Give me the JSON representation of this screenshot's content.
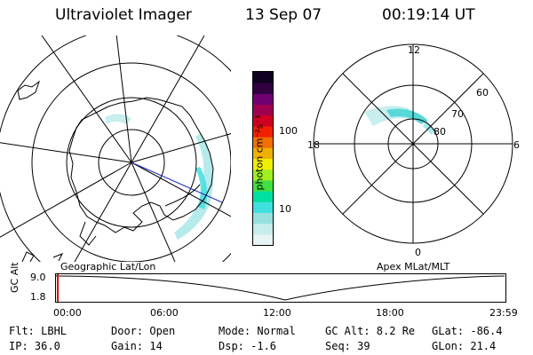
{
  "header": {
    "instrument": "Ultraviolet Imager",
    "date": "13 Sep 07",
    "time": "00:19:14 UT"
  },
  "geo_panel": {
    "label": "Geographic Lat/Lon"
  },
  "apex_panel": {
    "label": "Apex MLat/MLT",
    "mlt_labels": [
      "12",
      "18",
      "6",
      "0"
    ],
    "mlat_labels": [
      "60",
      "70",
      "80"
    ]
  },
  "colorbar": {
    "unit_label": "photon cm⁻²s⁻¹",
    "tick_labels": [
      "100",
      "10"
    ],
    "scale": "log",
    "colors": [
      "#e8f4f4",
      "#c7ecec",
      "#98e0e0",
      "#40e0e0",
      "#00e0a0",
      "#40e040",
      "#a0f020",
      "#f0f000",
      "#f0b000",
      "#f07000",
      "#f02000",
      "#d00020",
      "#a00050",
      "#700070",
      "#300040",
      "#100020"
    ]
  },
  "timeline": {
    "y_label": "GC Alt",
    "y_ticks": [
      "9.0",
      "1.8"
    ],
    "x_ticks": [
      "00:00",
      "06:00",
      "12:00",
      "18:00",
      "23:59"
    ]
  },
  "status": {
    "row1": [
      {
        "key": "flt",
        "text": "Flt: LBHL"
      },
      {
        "key": "door",
        "text": "Door: Open"
      },
      {
        "key": "mode",
        "text": "Mode: Normal"
      },
      {
        "key": "gcalt",
        "text": "GC Alt: 8.2 Re"
      },
      {
        "key": "glat",
        "text": "GLat: -86.4"
      }
    ],
    "row2": [
      {
        "key": "ip",
        "text": "IP: 36.0"
      },
      {
        "key": "gain",
        "text": "Gain: 14"
      },
      {
        "key": "dsp",
        "text": "Dsp:   -1.6"
      },
      {
        "key": "seq",
        "text": "Seq: 39"
      },
      {
        "key": "glon",
        "text": "GLon:  21.4"
      }
    ]
  }
}
